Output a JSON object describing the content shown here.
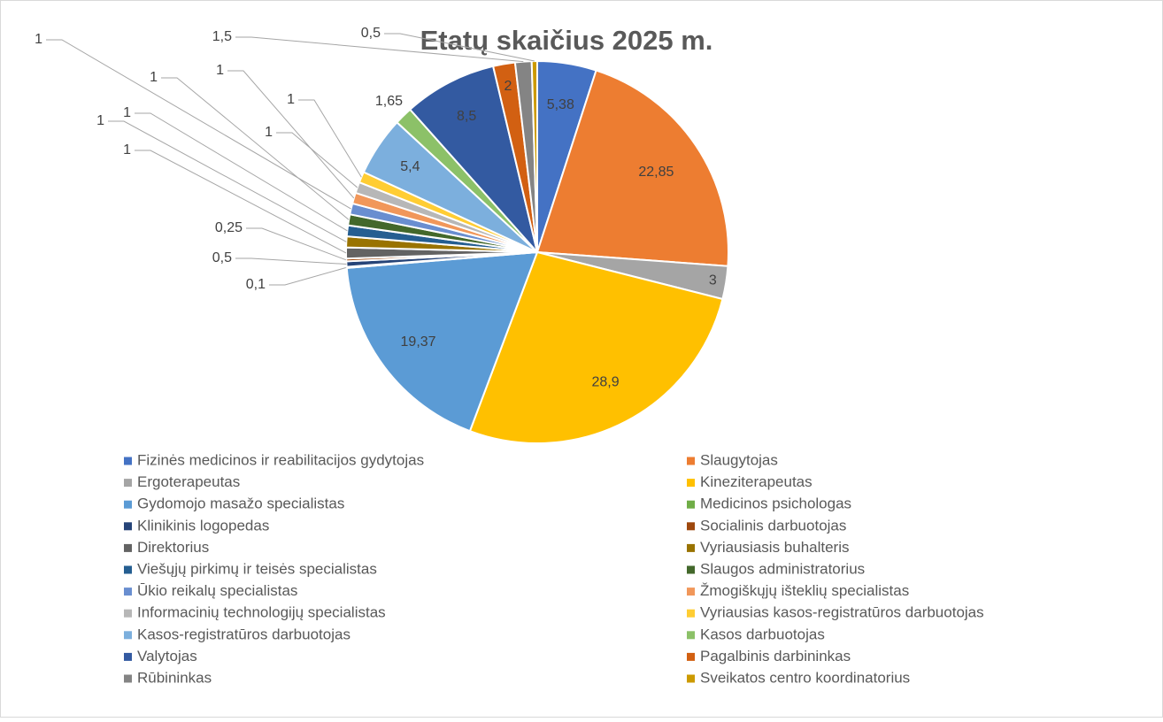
{
  "chart_data": {
    "type": "pie",
    "title": "Etatų skaičius 2025 m.",
    "categories": [
      "Fizinės medicinos ir reabilitacijos gydytojas",
      "Slaugytojas",
      "Ergoterapeutas",
      "Kineziterapeutas",
      "Gydomojo masažo specialistas",
      "Medicinos psichologas",
      "Klinikinis logopedas",
      "Socialinis darbuotojas",
      "Direktorius",
      "Vyriausiasis buhalteris",
      "Viešųjų pirkimų ir teisės specialistas",
      "Slaugos administratorius",
      "Ūkio reikalų specialistas",
      "Žmogiškųjų išteklių specialistas",
      "Informacinių technologijų specialistas",
      "Vyriausias kasos-registratūros darbuotojas",
      "Kasos-registratūros darbuotojas",
      "Kasos darbuotojas",
      "Valytojas",
      "Pagalbinis darbininkas",
      "Rūbininkas",
      "Sveikatos centro koordinatorius"
    ],
    "values": [
      5.38,
      22.85,
      3,
      28.9,
      19.37,
      0.1,
      0.5,
      0.25,
      1,
      1,
      1,
      1,
      1,
      1,
      1,
      1,
      5.4,
      1.65,
      8.5,
      2,
      1.5,
      0.5
    ],
    "value_labels": [
      "5,38",
      "22,85",
      "3",
      "28,9",
      "19,37",
      "0,1",
      "0,5",
      "0,25",
      "1",
      "1",
      "1",
      "1",
      "1",
      "1",
      "1",
      "1",
      "5,4",
      "1,65",
      "8,5",
      "2",
      "1,5",
      "0,5"
    ],
    "colors": [
      "#4472c4",
      "#ed7d31",
      "#a5a5a5",
      "#ffc000",
      "#5b9bd5",
      "#70ad47",
      "#264478",
      "#9e480e",
      "#636363",
      "#997300",
      "#255e91",
      "#43682b",
      "#698ed0",
      "#f1975a",
      "#b7b7b7",
      "#ffcd33",
      "#7cafdd",
      "#8cc168",
      "#335aa1",
      "#d26012",
      "#848484",
      "#cc9a00"
    ],
    "legend": "bottom"
  }
}
